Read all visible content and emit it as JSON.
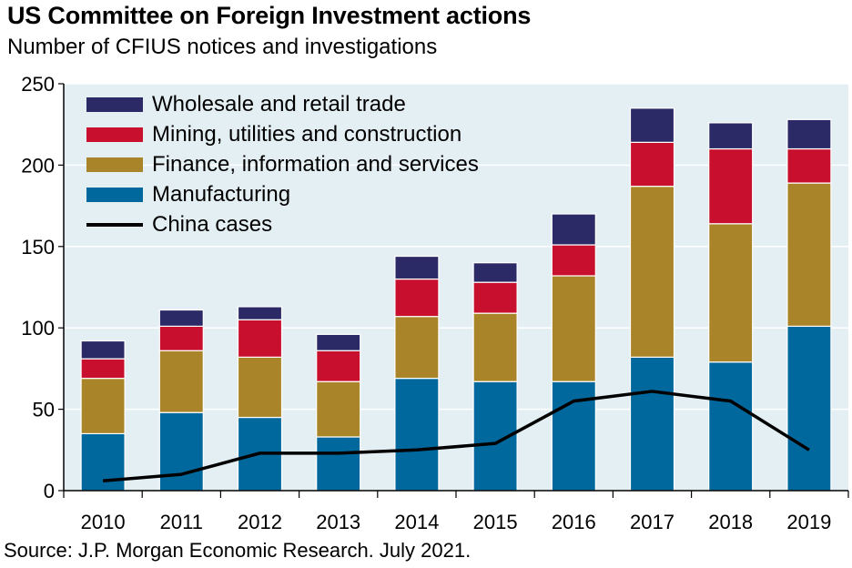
{
  "title": "US Committee on Foreign Investment actions",
  "subtitle": "Number of CFIUS notices and investigations",
  "source": "Source: J.P. Morgan Economic Research. July 2021.",
  "colors": {
    "wholesale": "#2b2a66",
    "mining": "#c8102e",
    "finance": "#a98428",
    "manufacturing": "#00689d",
    "china": "#000000",
    "plot_background": "#e4eff4",
    "gridline": "#ffffff"
  },
  "legend": [
    {
      "label": "Wholesale and retail trade",
      "type": "bar",
      "color_key": "wholesale"
    },
    {
      "label": "Mining, utilities and construction",
      "type": "bar",
      "color_key": "mining"
    },
    {
      "label": "Finance, information and services",
      "type": "bar",
      "color_key": "finance"
    },
    {
      "label": "Manufacturing",
      "type": "bar",
      "color_key": "manufacturing"
    },
    {
      "label": "China cases",
      "type": "line",
      "color_key": "china"
    }
  ],
  "chart_data": {
    "type": "bar",
    "stacked": true,
    "title": "US Committee on Foreign Investment actions",
    "subtitle": "Number of CFIUS notices and investigations",
    "categories": [
      "2010",
      "2011",
      "2012",
      "2013",
      "2014",
      "2015",
      "2016",
      "2017",
      "2018",
      "2019"
    ],
    "series": [
      {
        "name": "Manufacturing",
        "color_key": "manufacturing",
        "values": [
          35,
          48,
          45,
          33,
          69,
          67,
          67,
          82,
          79,
          101
        ]
      },
      {
        "name": "Finance, information and services",
        "color_key": "finance",
        "values": [
          34,
          38,
          37,
          34,
          38,
          42,
          65,
          105,
          85,
          88
        ]
      },
      {
        "name": "Mining, utilities and construction",
        "color_key": "mining",
        "values": [
          12,
          15,
          23,
          19,
          23,
          19,
          19,
          27,
          46,
          21
        ]
      },
      {
        "name": "Wholesale and retail trade",
        "color_key": "wholesale",
        "values": [
          11,
          10,
          8,
          10,
          14,
          12,
          19,
          21,
          16,
          18
        ]
      }
    ],
    "line_series": [
      {
        "name": "China cases",
        "color_key": "china",
        "values": [
          6,
          10,
          23,
          23,
          25,
          29,
          55,
          61,
          55,
          25
        ]
      }
    ],
    "ylim": [
      0,
      250
    ],
    "yticks": [
      0,
      50,
      100,
      150,
      200,
      250
    ],
    "xlabel": "",
    "ylabel": "",
    "grid": true,
    "legend_position": "top-left"
  }
}
